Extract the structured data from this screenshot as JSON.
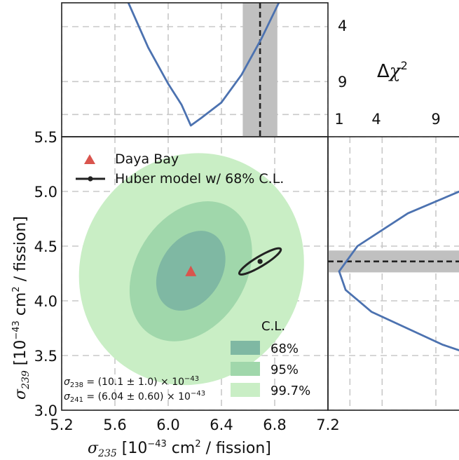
{
  "chart_data": [
    {
      "type": "contour",
      "panel": "main",
      "xlabel": "σ235 [10^-43 cm^2 / fission]",
      "ylabel": "σ239 [10^-43 cm^2 / fission]",
      "xlim": [
        5.2,
        7.2
      ],
      "ylim": [
        3.0,
        5.5
      ],
      "xticks": [
        "5.2",
        "5.6",
        "6.0",
        "6.4",
        "6.8",
        "7.2"
      ],
      "yticks": [
        "3.0",
        "3.5",
        "4.0",
        "4.5",
        "5.0",
        "5.5"
      ],
      "grid": true,
      "best_fit": {
        "name": "Daya Bay",
        "marker": "triangle",
        "x": 6.17,
        "y": 4.27,
        "color": "#d9544d"
      },
      "contours": [
        {
          "level": "99.7%",
          "x_range": [
            5.33,
            7.02
          ],
          "y_range": [
            3.23,
            5.35
          ],
          "color": "#c9eec5"
        },
        {
          "level": "95%",
          "x_range": [
            5.71,
            6.63
          ],
          "y_range": [
            3.63,
            4.91
          ],
          "color": "#a0d7ab"
        },
        {
          "level": "68%",
          "x_range": [
            5.91,
            6.43
          ],
          "y_range": [
            3.91,
            4.64
          ],
          "color": "#7fb8a3"
        }
      ],
      "model": {
        "name": "Huber model w/ 68% C.L.",
        "x": 6.69,
        "y": 4.36,
        "x_range": [
          6.53,
          6.85
        ],
        "y_range": [
          4.25,
          4.47
        ],
        "color": "#222222"
      },
      "legend_title": "C.L.",
      "legend_placement": "upper-left",
      "annotations": [
        "σ238 = (10.1 ± 1.0) × 10^-43",
        "σ241 = (6.04 ± 0.60) × 10^-43"
      ]
    },
    {
      "type": "line",
      "panel": "top",
      "ylabel": "Δχ²",
      "yticks": [
        "4",
        "9"
      ],
      "x": [
        5.55,
        5.7,
        5.85,
        6.0,
        6.1,
        6.17,
        6.25,
        6.4,
        6.55,
        6.7,
        6.9,
        7.2
      ],
      "y": [
        15.9,
        11.2,
        7.1,
        3.8,
        1.9,
        0.0,
        0.7,
        2.1,
        4.6,
        7.9,
        12.9,
        22.2
      ],
      "best_fit_band": {
        "center": 6.69,
        "range": [
          6.56,
          6.82
        ]
      },
      "series_color": "#4c72b0"
    },
    {
      "type": "line",
      "panel": "right",
      "xticks": [
        "1",
        "4",
        "9"
      ],
      "y": [
        3.0,
        3.3,
        3.6,
        3.9,
        4.1,
        4.27,
        4.5,
        4.8,
        5.1,
        5.5
      ],
      "x": [
        31.4,
        18.6,
        9.6,
        3.0,
        0.6,
        0.0,
        1.7,
        6.4,
        13.6,
        26.0
      ],
      "best_fit_band": {
        "center": 4.36,
        "range": [
          4.26,
          4.46
        ]
      },
      "series_color": "#4c72b0"
    }
  ]
}
